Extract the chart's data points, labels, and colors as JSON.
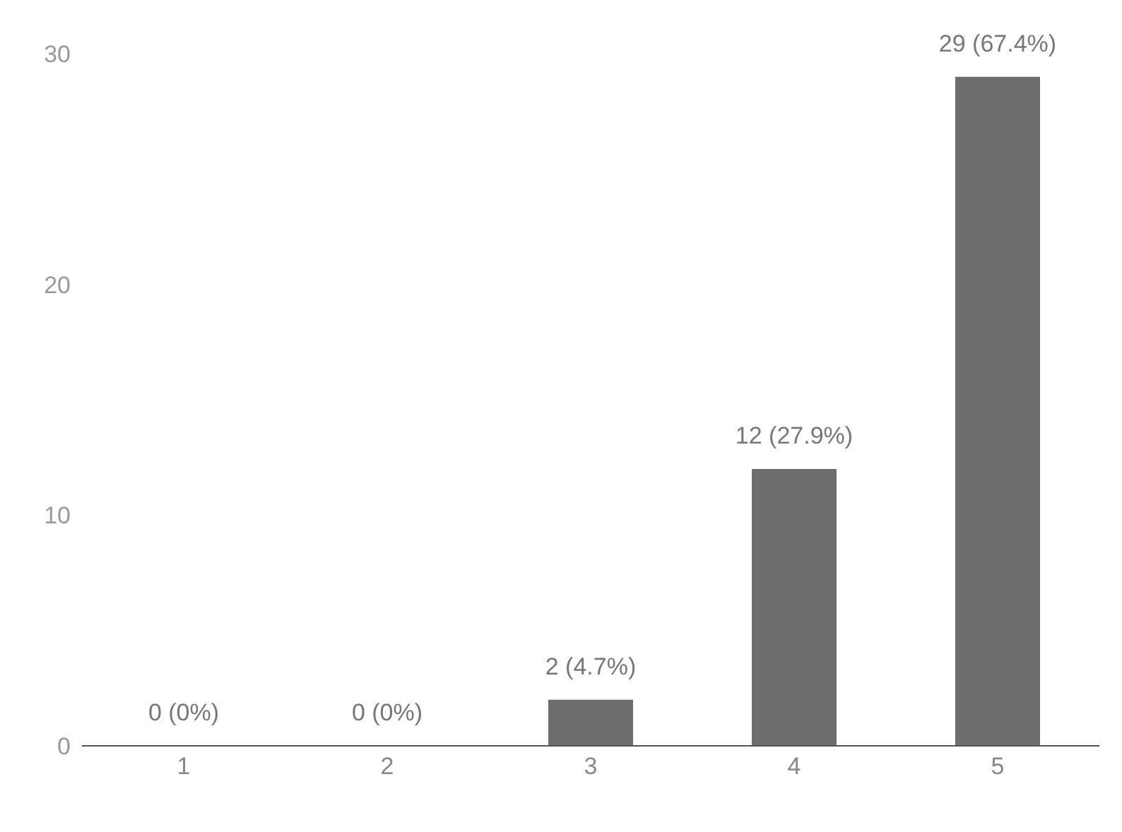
{
  "chart_data": {
    "type": "bar",
    "categories": [
      "1",
      "2",
      "3",
      "4",
      "5"
    ],
    "values": [
      0,
      0,
      2,
      12,
      29
    ],
    "value_labels": [
      "0 (0%)",
      "0 (0%)",
      "2 (4.7%)",
      "12 (27.9%)",
      "29 (67.4%)"
    ],
    "color": "#6d6d6d",
    "ylim": [
      0,
      30
    ],
    "yticks": [
      0,
      10,
      20,
      30
    ],
    "grid": false,
    "legend": false
  }
}
